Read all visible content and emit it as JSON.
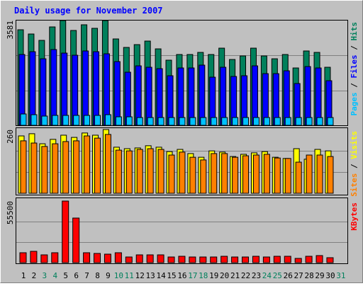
{
  "chart_data": [
    {
      "type": "bar",
      "title": "Daily usage for November 2007",
      "legend_separator": " / ",
      "ylim": [
        0,
        3581
      ],
      "yticks": [
        3581
      ],
      "series": [
        {
          "name": "Pages",
          "color": "#00c0ff",
          "values": [
            387,
            363,
            315,
            339,
            339,
            339,
            339,
            339,
            363,
            290,
            290,
            266,
            266,
            266,
            266,
            266,
            266,
            266,
            266,
            266,
            266,
            266,
            266,
            266,
            266,
            266,
            266,
            266,
            266,
            266,
            null
          ]
        },
        {
          "name": "Files",
          "color": "#0000ff",
          "values": [
            2420,
            2516,
            2274,
            2589,
            2468,
            2395,
            2541,
            2516,
            2444,
            2178,
            1815,
            2032,
            1984,
            1936,
            1694,
            1960,
            1960,
            2057,
            1645,
            1984,
            1670,
            1694,
            2032,
            1766,
            1766,
            1863,
            1428,
            2008,
            1960,
            1524,
            null
          ]
        },
        {
          "name": "Hits",
          "color": "#00805c",
          "values": [
            3266,
            3121,
            2903,
            3363,
            3581,
            3242,
            3436,
            3315,
            3581,
            2952,
            2662,
            2758,
            2879,
            2613,
            2226,
            2420,
            2420,
            2492,
            2420,
            2637,
            2250,
            2371,
            2637,
            2371,
            2274,
            2420,
            1960,
            2541,
            2492,
            1984,
            null
          ]
        }
      ]
    },
    {
      "type": "bar",
      "legend_separator": " / ",
      "ylim": [
        0,
        260
      ],
      "yticks": [
        260
      ],
      "series": [
        {
          "name": "Sites",
          "color": "#ff8000",
          "values": [
            214,
            205,
            191,
            202,
            211,
            214,
            234,
            225,
            240,
            176,
            173,
            179,
            182,
            179,
            156,
            168,
            147,
            136,
            162,
            162,
            147,
            153,
            156,
            159,
            144,
            142,
            127,
            156,
            156,
            150,
            null
          ]
        },
        {
          "name": "Visits",
          "color": "#ffff00",
          "values": [
            234,
            243,
            202,
            220,
            237,
            228,
            246,
            237,
            260,
            188,
            182,
            185,
            194,
            188,
            170,
            179,
            162,
            147,
            173,
            168,
            150,
            159,
            165,
            170,
            147,
            142,
            182,
            139,
            179,
            173,
            null
          ]
        }
      ]
    },
    {
      "type": "bar",
      "ylim": [
        0,
        55500
      ],
      "yticks": [
        55500
      ],
      "categories": [
        "1",
        "2",
        "3",
        "4",
        "5",
        "6",
        "7",
        "8",
        "9",
        "10",
        "11",
        "12",
        "13",
        "14",
        "15",
        "16",
        "17",
        "18",
        "19",
        "20",
        "21",
        "22",
        "23",
        "24",
        "25",
        "26",
        "27",
        "28",
        "29",
        "30",
        "31"
      ],
      "category_colors": [
        "#000000",
        "#000000",
        "#00805c",
        "#00805c",
        "#000000",
        "#000000",
        "#000000",
        "#000000",
        "#000000",
        "#00805c",
        "#00805c",
        "#000000",
        "#000000",
        "#000000",
        "#000000",
        "#000000",
        "#00805c",
        "#00805c",
        "#000000",
        "#000000",
        "#000000",
        "#000000",
        "#000000",
        "#00805c",
        "#00805c",
        "#000000",
        "#000000",
        "#000000",
        "#000000",
        "#000000",
        "#00805c"
      ],
      "series": [
        {
          "name": "KBytes",
          "color": "#ff0000",
          "values": [
            8931,
            10207,
            7017,
            8931,
            55500,
            40190,
            8931,
            8293,
            7655,
            8931,
            5103,
            7017,
            7017,
            7017,
            5103,
            5741,
            5103,
            5103,
            5103,
            5741,
            5103,
            5103,
            5741,
            5103,
            5741,
            5741,
            3828,
            5741,
            6379,
            4466,
            null
          ]
        }
      ]
    }
  ]
}
